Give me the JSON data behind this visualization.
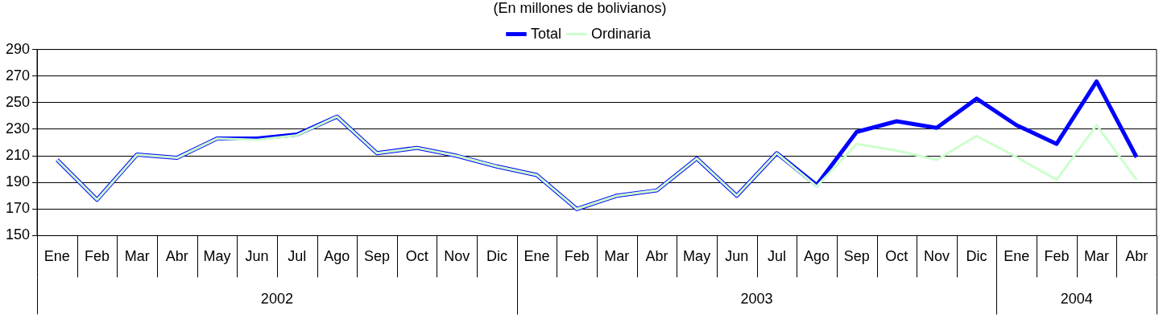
{
  "chart_data": {
    "type": "line",
    "title": "(En millones de bolivianos)",
    "categories": [
      "Ene",
      "Feb",
      "Mar",
      "Abr",
      "May",
      "Jun",
      "Jul",
      "Ago",
      "Sep",
      "Oct",
      "Nov",
      "Dic",
      "Ene",
      "Feb",
      "Mar",
      "Abr",
      "May",
      "Jun",
      "Jul",
      "Ago",
      "Sep",
      "Oct",
      "Nov",
      "Dic",
      "Ene",
      "Feb",
      "Mar",
      "Abr"
    ],
    "series": [
      {
        "name": "Total",
        "color": "#0000ff",
        "values": [
          207,
          177,
          211,
          208.5,
          223,
          223,
          226,
          239.5,
          212,
          216,
          210,
          202,
          195.5,
          170,
          180,
          184,
          208,
          180,
          212,
          188,
          228,
          236,
          231,
          253,
          233,
          219,
          266,
          209
        ]
      },
      {
        "name": "Ordinaria",
        "color": "#ccffcc",
        "values": [
          207,
          177,
          211,
          208.5,
          223,
          222,
          225.5,
          239.5,
          212,
          216,
          210,
          202,
          195.5,
          170,
          180,
          184,
          208,
          180,
          212,
          187,
          219,
          214,
          207,
          225,
          209,
          192,
          233,
          192
        ]
      }
    ],
    "annotations": [
      "2002",
      "2003",
      "2004"
    ],
    "ylim": [
      150,
      290
    ],
    "yticks": [
      150,
      170,
      190,
      210,
      230,
      250,
      270,
      290
    ],
    "grid": "y",
    "legend": "top",
    "marker": "none",
    "line_style": "solid"
  }
}
